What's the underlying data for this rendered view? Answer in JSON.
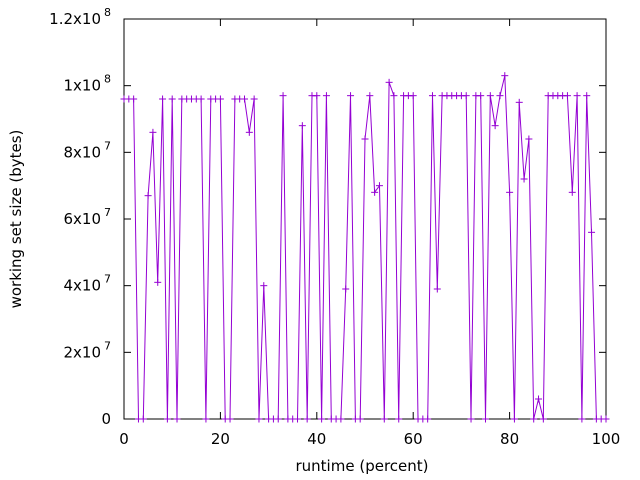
{
  "chart_data": {
    "type": "line",
    "title": "",
    "xlabel": "runtime (percent)",
    "ylabel": "working set size (bytes)",
    "xlim": [
      0,
      100
    ],
    "ylim": [
      0,
      120000000
    ],
    "grid": false,
    "colors": {
      "series": "#9400d3",
      "axes": "#000000"
    },
    "x_ticks": [
      {
        "value": 0,
        "label": "0"
      },
      {
        "value": 20,
        "label": "20"
      },
      {
        "value": 40,
        "label": "40"
      },
      {
        "value": 60,
        "label": "60"
      },
      {
        "value": 80,
        "label": "80"
      },
      {
        "value": 100,
        "label": "100"
      }
    ],
    "y_ticks": [
      {
        "value": 0,
        "mantissa": "0",
        "exponent": ""
      },
      {
        "value": 20000000,
        "mantissa": "2x10",
        "exponent": "7"
      },
      {
        "value": 40000000,
        "mantissa": "4x10",
        "exponent": "7"
      },
      {
        "value": 60000000,
        "mantissa": "6x10",
        "exponent": "7"
      },
      {
        "value": 80000000,
        "mantissa": "8x10",
        "exponent": "7"
      },
      {
        "value": 100000000,
        "mantissa": "1x10",
        "exponent": "8"
      },
      {
        "value": 120000000,
        "mantissa": "1.2x10",
        "exponent": "8"
      }
    ],
    "series": [
      {
        "marker": "plus",
        "x": [
          0,
          1,
          2,
          3,
          4,
          5,
          6,
          7,
          8,
          9,
          10,
          11,
          12,
          13,
          14,
          15,
          16,
          17,
          18,
          19,
          20,
          21,
          22,
          23,
          24,
          25,
          26,
          27,
          28,
          29,
          30,
          31,
          32,
          33,
          34,
          35,
          36,
          37,
          38,
          39,
          40,
          41,
          42,
          43,
          44,
          45,
          46,
          47,
          48,
          49,
          50,
          51,
          52,
          53,
          54,
          55,
          56,
          57,
          58,
          59,
          60,
          61,
          62,
          63,
          64,
          65,
          66,
          67,
          68,
          69,
          70,
          71,
          72,
          73,
          74,
          75,
          76,
          77,
          78,
          79,
          80,
          81,
          82,
          83,
          84,
          85,
          86,
          87,
          88,
          89,
          90,
          91,
          92,
          93,
          94,
          95,
          96,
          97,
          98,
          99,
          100
        ],
        "y": [
          96000000,
          96000000,
          96000000,
          0,
          0,
          67000000,
          86000000,
          41000000,
          96000000,
          0,
          96000000,
          0,
          96000000,
          96000000,
          96000000,
          96000000,
          96000000,
          0,
          96000000,
          96000000,
          96000000,
          0,
          0,
          96000000,
          96000000,
          96000000,
          86000000,
          96000000,
          0,
          40000000,
          0,
          0,
          0,
          97000000,
          0,
          0,
          0,
          88000000,
          0,
          97000000,
          97000000,
          0,
          97000000,
          0,
          0,
          0,
          39000000,
          97000000,
          0,
          0,
          84000000,
          97000000,
          68000000,
          70000000,
          0,
          101000000,
          97000000,
          0,
          97000000,
          97000000,
          97000000,
          0,
          0,
          0,
          97000000,
          39000000,
          97000000,
          97000000,
          97000000,
          97000000,
          97000000,
          97000000,
          0,
          97000000,
          97000000,
          0,
          97000000,
          88000000,
          97000000,
          103000000,
          68000000,
          0,
          95000000,
          72000000,
          84000000,
          0,
          6000000,
          0,
          97000000,
          97000000,
          97000000,
          97000000,
          97000000,
          68000000,
          97000000,
          0,
          97000000,
          56000000,
          0,
          0,
          0
        ]
      }
    ]
  }
}
